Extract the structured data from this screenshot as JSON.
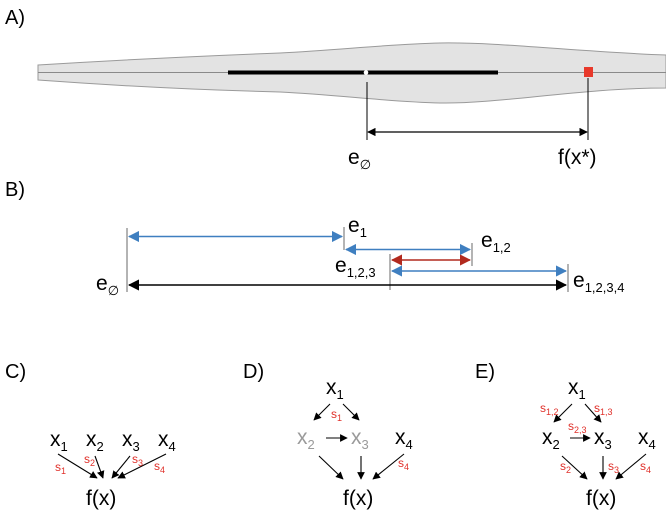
{
  "panels": {
    "a": "A)",
    "b": "B)",
    "c": "C)",
    "d": "D)",
    "e": "E)"
  },
  "panel_a": {
    "baseline_label": "e",
    "baseline_sub": "∅",
    "prediction_label": "f(x*)"
  },
  "panel_b": {
    "e_empty": {
      "main": "e",
      "sub": "∅"
    },
    "e1": {
      "main": "e",
      "sub": "1"
    },
    "e12": {
      "main": "e",
      "sub": "1,2"
    },
    "e123": {
      "main": "e",
      "sub": "1,2,3"
    },
    "e1234": {
      "main": "e",
      "sub": "1,2,3,4"
    }
  },
  "panel_c": {
    "nodes": [
      {
        "main": "x",
        "sub": "1"
      },
      {
        "main": "x",
        "sub": "2"
      },
      {
        "main": "x",
        "sub": "3"
      },
      {
        "main": "x",
        "sub": "4"
      }
    ],
    "edge_labels": [
      {
        "main": "s",
        "sub": "1"
      },
      {
        "main": "s",
        "sub": "2"
      },
      {
        "main": "s",
        "sub": "3"
      },
      {
        "main": "s",
        "sub": "4"
      }
    ],
    "output": "f(x)"
  },
  "panel_d": {
    "x1": {
      "main": "x",
      "sub": "1"
    },
    "x2": {
      "main": "x",
      "sub": "2"
    },
    "x3": {
      "main": "x",
      "sub": "3"
    },
    "x4": {
      "main": "x",
      "sub": "4"
    },
    "s1": {
      "main": "s",
      "sub": "1"
    },
    "s4": {
      "main": "s",
      "sub": "4"
    },
    "output": "f(x)"
  },
  "panel_e": {
    "x1": {
      "main": "x",
      "sub": "1"
    },
    "x2": {
      "main": "x",
      "sub": "2"
    },
    "x3": {
      "main": "x",
      "sub": "3"
    },
    "x4": {
      "main": "x",
      "sub": "4"
    },
    "s12": {
      "main": "s",
      "sub": "1,2"
    },
    "s13": {
      "main": "s",
      "sub": "1,3"
    },
    "s23": {
      "main": "s",
      "sub": "2,3"
    },
    "s2": {
      "main": "s",
      "sub": "2"
    },
    "s3": {
      "main": "s",
      "sub": "3"
    },
    "s4": {
      "main": "s",
      "sub": "4"
    },
    "output": "f(x)"
  },
  "colors": {
    "blue": "#3f7fc0",
    "red_arrow": "#b22a1e",
    "label_red": "#e0302a",
    "grey_text": "#9a9a9a",
    "violin_fill": "#e3e3e3",
    "marker": "#e8392b"
  }
}
